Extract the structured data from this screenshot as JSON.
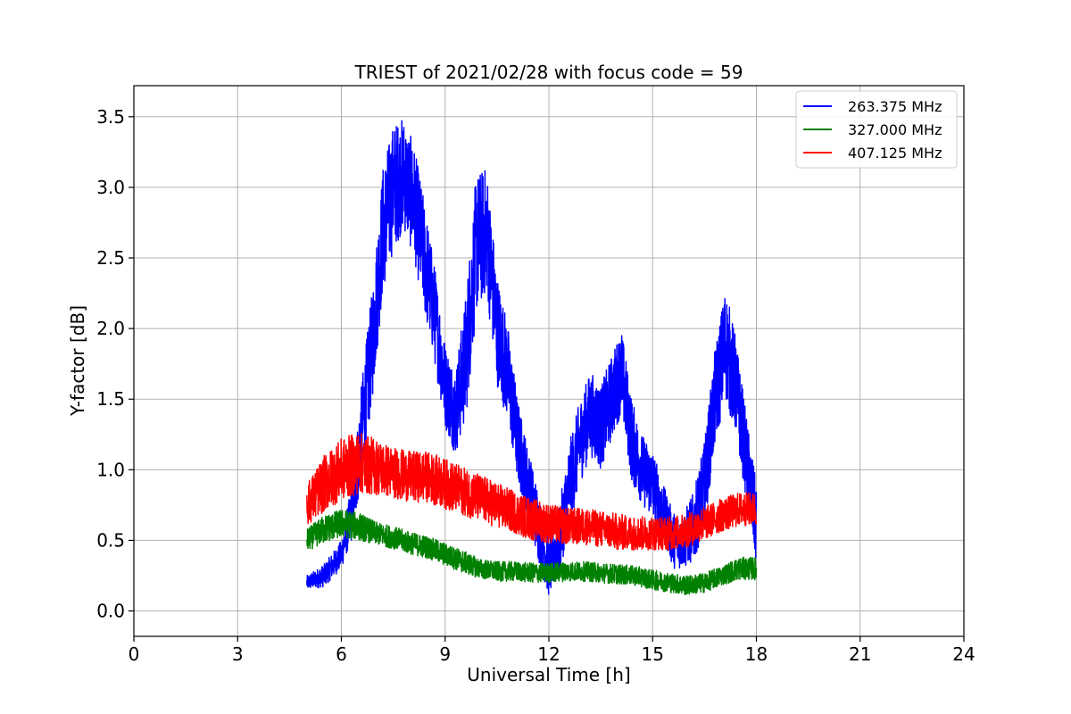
{
  "chart_data": {
    "type": "line",
    "title": "TRIEST of 2021/02/28 with focus code = 59",
    "xlabel": "Universal Time [h]",
    "ylabel": "Y-factor [dB]",
    "xlim": [
      0,
      24
    ],
    "ylim": [
      -0.18,
      3.72
    ],
    "xticks": [
      0,
      3,
      6,
      9,
      12,
      15,
      18,
      21,
      24
    ],
    "yticks": [
      0.0,
      0.5,
      1.0,
      1.5,
      2.0,
      2.5,
      3.0,
      3.5
    ],
    "ytick_labels": [
      "0.0",
      "0.5",
      "1.0",
      "1.5",
      "2.0",
      "2.5",
      "3.0",
      "3.5"
    ],
    "grid": true,
    "legend_position": "top-right",
    "series": [
      {
        "name": "263.375 MHz",
        "color": "#0000ff",
        "x": [
          5.0,
          5.5,
          6.0,
          6.3,
          6.6,
          6.9,
          7.2,
          7.5,
          7.8,
          8.1,
          8.4,
          8.7,
          9.0,
          9.3,
          9.6,
          9.9,
          10.2,
          10.5,
          10.8,
          11.1,
          11.4,
          11.7,
          12.0,
          12.3,
          12.6,
          12.9,
          13.2,
          13.5,
          13.8,
          14.1,
          14.4,
          14.7,
          15.0,
          15.3,
          15.6,
          15.9,
          16.2,
          16.5,
          16.8,
          17.1,
          17.4,
          17.7,
          18.0
        ],
        "y": [
          0.2,
          0.25,
          0.4,
          0.7,
          1.3,
          1.9,
          2.7,
          3.0,
          3.1,
          2.9,
          2.5,
          2.1,
          1.6,
          1.4,
          1.8,
          2.6,
          2.7,
          2.0,
          1.7,
          1.2,
          0.9,
          0.6,
          0.3,
          0.5,
          0.9,
          1.2,
          1.4,
          1.3,
          1.5,
          1.7,
          1.2,
          1.0,
          0.9,
          0.7,
          0.5,
          0.5,
          0.6,
          0.9,
          1.5,
          1.9,
          1.6,
          1.1,
          0.6
        ],
        "noise": [
          0.05,
          0.08,
          0.1,
          0.2,
          0.35,
          0.4,
          0.45,
          0.45,
          0.4,
          0.4,
          0.4,
          0.35,
          0.3,
          0.3,
          0.45,
          0.5,
          0.45,
          0.4,
          0.35,
          0.3,
          0.25,
          0.25,
          0.2,
          0.25,
          0.3,
          0.3,
          0.3,
          0.3,
          0.3,
          0.3,
          0.3,
          0.25,
          0.25,
          0.2,
          0.2,
          0.2,
          0.25,
          0.3,
          0.35,
          0.4,
          0.35,
          0.3,
          0.3
        ]
      },
      {
        "name": "327.000 MHz",
        "color": "#008000",
        "x": [
          5.0,
          5.5,
          6.0,
          6.5,
          7.0,
          7.5,
          8.0,
          8.5,
          9.0,
          9.5,
          10.0,
          10.5,
          11.0,
          11.5,
          12.0,
          12.5,
          13.0,
          13.5,
          14.0,
          14.5,
          15.0,
          15.5,
          16.0,
          16.5,
          17.0,
          17.5,
          18.0
        ],
        "y": [
          0.5,
          0.58,
          0.62,
          0.6,
          0.55,
          0.52,
          0.48,
          0.45,
          0.4,
          0.35,
          0.3,
          0.28,
          0.28,
          0.27,
          0.27,
          0.28,
          0.28,
          0.27,
          0.26,
          0.25,
          0.22,
          0.2,
          0.18,
          0.2,
          0.25,
          0.3,
          0.3
        ],
        "noise": [
          0.08,
          0.1,
          0.1,
          0.1,
          0.08,
          0.08,
          0.08,
          0.08,
          0.08,
          0.08,
          0.07,
          0.07,
          0.07,
          0.07,
          0.07,
          0.07,
          0.07,
          0.07,
          0.07,
          0.07,
          0.07,
          0.07,
          0.07,
          0.07,
          0.07,
          0.08,
          0.08
        ]
      },
      {
        "name": "407.125 MHz",
        "color": "#ff0000",
        "x": [
          5.0,
          5.5,
          6.0,
          6.5,
          7.0,
          7.5,
          8.0,
          8.5,
          9.0,
          9.5,
          10.0,
          10.5,
          11.0,
          11.5,
          12.0,
          12.5,
          13.0,
          13.5,
          14.0,
          14.5,
          15.0,
          15.5,
          16.0,
          16.5,
          17.0,
          17.5,
          18.0
        ],
        "y": [
          0.75,
          0.9,
          1.0,
          1.05,
          1.02,
          0.98,
          0.95,
          0.95,
          0.9,
          0.85,
          0.8,
          0.75,
          0.7,
          0.65,
          0.62,
          0.6,
          0.6,
          0.58,
          0.56,
          0.55,
          0.55,
          0.55,
          0.57,
          0.62,
          0.68,
          0.72,
          0.72
        ],
        "noise": [
          0.15,
          0.2,
          0.22,
          0.22,
          0.2,
          0.18,
          0.18,
          0.18,
          0.18,
          0.17,
          0.17,
          0.16,
          0.15,
          0.15,
          0.14,
          0.13,
          0.13,
          0.13,
          0.13,
          0.12,
          0.12,
          0.12,
          0.12,
          0.12,
          0.12,
          0.12,
          0.12
        ]
      }
    ]
  }
}
